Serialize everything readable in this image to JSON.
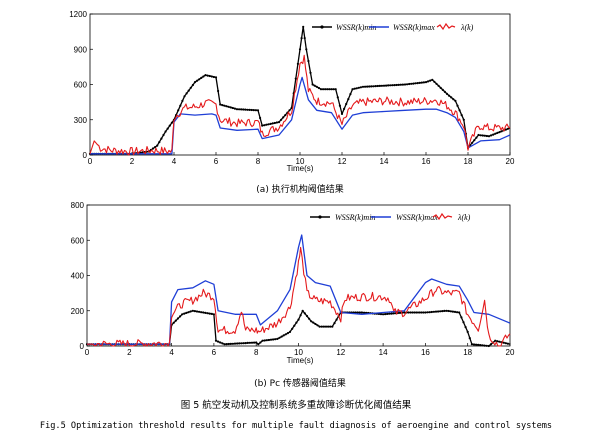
{
  "chart_data": [
    {
      "type": "line",
      "caption": "(a) 执行机构阈值结果",
      "xlabel": "Time(s)",
      "ylabel": "",
      "xlim": [
        0,
        20
      ],
      "ylim": [
        0,
        1200
      ],
      "xticks": [
        "0",
        "2",
        "4",
        "6",
        "8",
        "10",
        "12",
        "14",
        "16",
        "18",
        "20"
      ],
      "yticks": [
        "0",
        "300",
        "600",
        "900",
        "1200"
      ],
      "legend_position": "top-right",
      "series": [
        {
          "name": "WSSR(k)min",
          "color": "#000000",
          "marker": "dot",
          "points": [
            [
              0,
              10
            ],
            [
              2,
              10
            ],
            [
              2.8,
              30
            ],
            [
              3.2,
              80
            ],
            [
              3.6,
              200
            ],
            [
              4.0,
              300
            ],
            [
              4.5,
              500
            ],
            [
              5.0,
              620
            ],
            [
              5.5,
              680
            ],
            [
              6.0,
              660
            ],
            [
              6.2,
              430
            ],
            [
              7.0,
              390
            ],
            [
              8.0,
              380
            ],
            [
              8.2,
              250
            ],
            [
              9.0,
              280
            ],
            [
              9.6,
              400
            ],
            [
              10.0,
              900
            ],
            [
              10.15,
              1090
            ],
            [
              10.3,
              900
            ],
            [
              10.6,
              600
            ],
            [
              11.0,
              560
            ],
            [
              11.7,
              560
            ],
            [
              12.0,
              350
            ],
            [
              12.5,
              560
            ],
            [
              13.0,
              580
            ],
            [
              14.0,
              590
            ],
            [
              15.0,
              600
            ],
            [
              16.0,
              620
            ],
            [
              16.3,
              640
            ],
            [
              17.0,
              520
            ],
            [
              17.4,
              460
            ],
            [
              17.8,
              300
            ],
            [
              18.0,
              60
            ],
            [
              18.5,
              170
            ],
            [
              19.0,
              160
            ],
            [
              20.0,
              230
            ]
          ]
        },
        {
          "name": "WSSR(k)max",
          "color": "#1f3fd6",
          "marker": "none",
          "points": [
            [
              0,
              10
            ],
            [
              3.9,
              10
            ],
            [
              4.0,
              280
            ],
            [
              4.3,
              350
            ],
            [
              5.0,
              340
            ],
            [
              5.8,
              350
            ],
            [
              6.0,
              340
            ],
            [
              6.2,
              230
            ],
            [
              7.0,
              210
            ],
            [
              8.0,
              220
            ],
            [
              8.2,
              140
            ],
            [
              9.0,
              170
            ],
            [
              9.6,
              300
            ],
            [
              10.0,
              600
            ],
            [
              10.1,
              660
            ],
            [
              10.4,
              470
            ],
            [
              10.8,
              380
            ],
            [
              11.5,
              360
            ],
            [
              12.0,
              220
            ],
            [
              12.5,
              340
            ],
            [
              13.0,
              360
            ],
            [
              14.0,
              370
            ],
            [
              15.0,
              380
            ],
            [
              16.0,
              390
            ],
            [
              16.5,
              390
            ],
            [
              17.0,
              360
            ],
            [
              17.4,
              320
            ],
            [
              17.8,
              200
            ],
            [
              18.0,
              60
            ],
            [
              18.6,
              120
            ],
            [
              19.5,
              130
            ],
            [
              20.0,
              170
            ]
          ]
        },
        {
          "name": "λ(k)",
          "color": "#e41a1c",
          "marker": "noise",
          "points": [
            [
              0,
              10
            ],
            [
              0.2,
              120
            ],
            [
              0.5,
              60
            ],
            [
              1.0,
              40
            ],
            [
              2.0,
              30
            ],
            [
              3.0,
              40
            ],
            [
              3.9,
              30
            ],
            [
              4.0,
              320
            ],
            [
              4.5,
              400
            ],
            [
              5.0,
              410
            ],
            [
              5.5,
              440
            ],
            [
              6.0,
              430
            ],
            [
              6.2,
              300
            ],
            [
              7.0,
              270
            ],
            [
              8.0,
              280
            ],
            [
              8.2,
              180
            ],
            [
              9.0,
              240
            ],
            [
              9.6,
              380
            ],
            [
              10.0,
              780
            ],
            [
              10.2,
              830
            ],
            [
              10.4,
              550
            ],
            [
              10.8,
              460
            ],
            [
              11.5,
              440
            ],
            [
              12.0,
              260
            ],
            [
              12.5,
              420
            ],
            [
              13.0,
              450
            ],
            [
              14.0,
              460
            ],
            [
              15.0,
              450
            ],
            [
              16.0,
              460
            ],
            [
              16.5,
              470
            ],
            [
              17.0,
              420
            ],
            [
              17.4,
              360
            ],
            [
              17.8,
              250
            ],
            [
              18.0,
              60
            ],
            [
              18.5,
              250
            ],
            [
              19.0,
              230
            ],
            [
              20.0,
              230
            ]
          ]
        }
      ]
    },
    {
      "type": "line",
      "caption": "(b) Pc 传感器阈值结果",
      "xlabel": "Time(s)",
      "ylabel": "",
      "xlim": [
        0,
        20
      ],
      "ylim": [
        0,
        800
      ],
      "xticks": [
        "0",
        "2",
        "4",
        "6",
        "8",
        "10",
        "12",
        "14",
        "16",
        "18",
        "20"
      ],
      "yticks": [
        "0",
        "200",
        "400",
        "600",
        "800"
      ],
      "legend_position": "top-right",
      "series": [
        {
          "name": "WSSR(k)min",
          "color": "#000000",
          "marker": "dot",
          "points": [
            [
              0,
              10
            ],
            [
              3.9,
              10
            ],
            [
              4.0,
              120
            ],
            [
              4.5,
              180
            ],
            [
              5.0,
              200
            ],
            [
              5.5,
              190
            ],
            [
              6.0,
              180
            ],
            [
              6.1,
              30
            ],
            [
              6.5,
              10
            ],
            [
              8.0,
              20
            ],
            [
              8.1,
              10
            ],
            [
              8.3,
              30
            ],
            [
              9.0,
              40
            ],
            [
              9.6,
              80
            ],
            [
              10.0,
              150
            ],
            [
              10.2,
              200
            ],
            [
              10.6,
              140
            ],
            [
              11.0,
              110
            ],
            [
              11.6,
              110
            ],
            [
              12.0,
              190
            ],
            [
              13.0,
              190
            ],
            [
              14.0,
              180
            ],
            [
              15.0,
              190
            ],
            [
              16.0,
              190
            ],
            [
              17.0,
              200
            ],
            [
              17.6,
              190
            ],
            [
              18.0,
              80
            ],
            [
              18.2,
              10
            ],
            [
              19.0,
              0
            ],
            [
              19.3,
              30
            ],
            [
              20.0,
              10
            ]
          ]
        },
        {
          "name": "WSSR(k)max",
          "color": "#1f3fd6",
          "marker": "none",
          "points": [
            [
              0,
              10
            ],
            [
              3.9,
              10
            ],
            [
              4.0,
              250
            ],
            [
              4.3,
              320
            ],
            [
              5.0,
              330
            ],
            [
              5.6,
              370
            ],
            [
              6.0,
              350
            ],
            [
              6.2,
              200
            ],
            [
              7.0,
              180
            ],
            [
              8.0,
              180
            ],
            [
              8.2,
              120
            ],
            [
              9.0,
              200
            ],
            [
              9.6,
              320
            ],
            [
              10.0,
              560
            ],
            [
              10.15,
              630
            ],
            [
              10.4,
              400
            ],
            [
              10.8,
              360
            ],
            [
              11.5,
              340
            ],
            [
              12.0,
              190
            ],
            [
              13.0,
              180
            ],
            [
              14.0,
              190
            ],
            [
              15.0,
              200
            ],
            [
              16.0,
              360
            ],
            [
              16.3,
              380
            ],
            [
              17.0,
              350
            ],
            [
              17.6,
              340
            ],
            [
              18.0,
              260
            ],
            [
              18.3,
              190
            ],
            [
              19.0,
              180
            ],
            [
              20.0,
              130
            ]
          ]
        },
        {
          "name": "λ(k)",
          "color": "#e41a1c",
          "marker": "noise",
          "points": [
            [
              0,
              10
            ],
            [
              3.9,
              15
            ],
            [
              4.0,
              180
            ],
            [
              4.5,
              240
            ],
            [
              5.0,
              260
            ],
            [
              5.5,
              300
            ],
            [
              6.0,
              280
            ],
            [
              6.2,
              90
            ],
            [
              7.0,
              90
            ],
            [
              7.3,
              200
            ],
            [
              7.5,
              90
            ],
            [
              8.0,
              90
            ],
            [
              8.1,
              80
            ],
            [
              9.0,
              130
            ],
            [
              9.6,
              220
            ],
            [
              10.0,
              470
            ],
            [
              10.1,
              550
            ],
            [
              10.4,
              300
            ],
            [
              10.8,
              260
            ],
            [
              11.5,
              250
            ],
            [
              12.0,
              160
            ],
            [
              12.2,
              270
            ],
            [
              13.0,
              280
            ],
            [
              14.0,
              280
            ],
            [
              14.3,
              270
            ],
            [
              14.5,
              190
            ],
            [
              15.0,
              190
            ],
            [
              16.0,
              270
            ],
            [
              16.5,
              320
            ],
            [
              17.0,
              300
            ],
            [
              17.6,
              300
            ],
            [
              18.0,
              180
            ],
            [
              18.5,
              100
            ],
            [
              18.8,
              260
            ],
            [
              19.0,
              60
            ],
            [
              19.5,
              0
            ],
            [
              20.0,
              70
            ]
          ]
        }
      ]
    }
  ],
  "figure_caption_cn": "图 5 航空发动机及控制系统多重故障诊断优化阈值结果",
  "figure_caption_en": "Fig.5 Optimization threshold results for multiple fault diagnosis of aeroengine and control systems"
}
